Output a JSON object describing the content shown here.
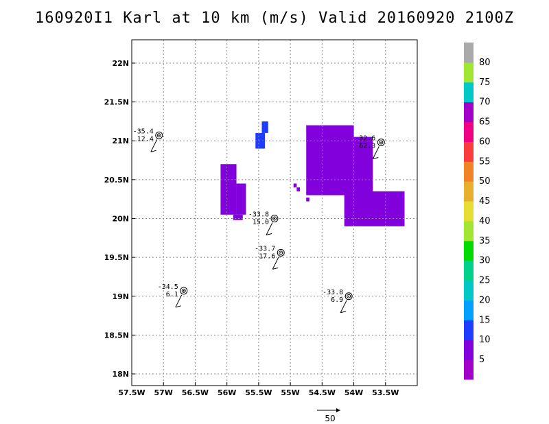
{
  "title": "160920I1 Karl at 10 km (m/s) Valid 20160920 2100Z",
  "chart_data": {
    "type": "heatmap",
    "title": "160920I1 Karl at 10 km (m/s) Valid 20160920 2100Z",
    "xlim": [
      -57.5,
      -53.0
    ],
    "ylim": [
      17.85,
      22.3
    ],
    "x_ticks": [
      {
        "value": -57.5,
        "label": "57.5W"
      },
      {
        "value": -57.0,
        "label": "57W"
      },
      {
        "value": -56.5,
        "label": "56.5W"
      },
      {
        "value": -56.0,
        "label": "56W"
      },
      {
        "value": -55.5,
        "label": "55.5W"
      },
      {
        "value": -55.0,
        "label": "55W"
      },
      {
        "value": -54.5,
        "label": "54.5W"
      },
      {
        "value": -54.0,
        "label": "54W"
      },
      {
        "value": -53.5,
        "label": "53.5W"
      }
    ],
    "y_ticks": [
      {
        "value": 18.0,
        "label": "18N"
      },
      {
        "value": 18.5,
        "label": "18.5N"
      },
      {
        "value": 19.0,
        "label": "19N"
      },
      {
        "value": 19.5,
        "label": "19.5N"
      },
      {
        "value": 20.0,
        "label": "20N"
      },
      {
        "value": 20.5,
        "label": "20.5N"
      },
      {
        "value": 21.0,
        "label": "21N"
      },
      {
        "value": 21.5,
        "label": "21.5N"
      },
      {
        "value": 22.0,
        "label": "22N"
      }
    ],
    "grid": true,
    "colorbar": {
      "position": "right",
      "levels": [
        {
          "label": "",
          "color": "#a000c8"
        },
        {
          "label": "5",
          "color": "#8200dc"
        },
        {
          "label": "10",
          "color": "#1e3cff"
        },
        {
          "label": "15",
          "color": "#00a0ff"
        },
        {
          "label": "20",
          "color": "#00c8c8"
        },
        {
          "label": "25",
          "color": "#00d28c"
        },
        {
          "label": "30",
          "color": "#00dc00"
        },
        {
          "label": "35",
          "color": "#a0e632"
        },
        {
          "label": "40",
          "color": "#e6dc32"
        },
        {
          "label": "45",
          "color": "#e6af2d"
        },
        {
          "label": "50",
          "color": "#f08228"
        },
        {
          "label": "55",
          "color": "#fa3c3c"
        },
        {
          "label": "60",
          "color": "#f00082"
        },
        {
          "label": "65",
          "color": "#a000c8"
        },
        {
          "label": "70",
          "color": "#00c8c8"
        },
        {
          "label": "75",
          "color": "#a0e632"
        },
        {
          "label": "80",
          "color": "#aaaaaa"
        }
      ]
    },
    "regions": [
      {
        "level": 1,
        "color": "#8200dc",
        "rects": [
          [
            -56.1,
            -55.85,
            20.05,
            20.7
          ],
          [
            -55.85,
            -55.7,
            20.05,
            20.45
          ],
          [
            -55.9,
            -55.75,
            19.98,
            20.05
          ]
        ]
      },
      {
        "level": 2,
        "color": "#1e3cff",
        "rects": [
          [
            -55.55,
            -55.4,
            20.9,
            21.1
          ],
          [
            -55.45,
            -55.35,
            21.1,
            21.25
          ]
        ]
      },
      {
        "level": 1,
        "color": "#8200dc",
        "rects": [
          [
            -54.75,
            -54.0,
            20.3,
            21.2
          ],
          [
            -54.0,
            -53.7,
            20.1,
            21.05
          ],
          [
            -53.85,
            -53.2,
            19.95,
            20.35
          ],
          [
            -54.15,
            -53.2,
            19.9,
            20.3
          ]
        ]
      },
      {
        "level": 1,
        "color": "#8200dc",
        "rects": [
          [
            -54.95,
            -54.9,
            20.4,
            20.45
          ],
          [
            -54.9,
            -54.85,
            20.35,
            20.4
          ],
          [
            -54.75,
            -54.7,
            20.22,
            20.27
          ]
        ]
      }
    ],
    "stations": [
      {
        "lon": -57.07,
        "lat": 21.07,
        "temp": "-35.4",
        "speed": "12.4"
      },
      {
        "lon": -53.57,
        "lat": 20.98,
        "temp": "-32.6",
        "speed": "62.3"
      },
      {
        "lon": -55.25,
        "lat": 20.0,
        "temp": "-33.8",
        "speed": "15.0"
      },
      {
        "lon": -55.15,
        "lat": 19.56,
        "temp": "-33.7",
        "speed": "17.6"
      },
      {
        "lon": -56.68,
        "lat": 19.07,
        "temp": "-34.5",
        "speed": "6.1"
      },
      {
        "lon": -54.08,
        "lat": 19.0,
        "temp": "-33.8",
        "speed": "6.9"
      }
    ],
    "reference_vector": {
      "value": "50",
      "label": "50"
    }
  }
}
